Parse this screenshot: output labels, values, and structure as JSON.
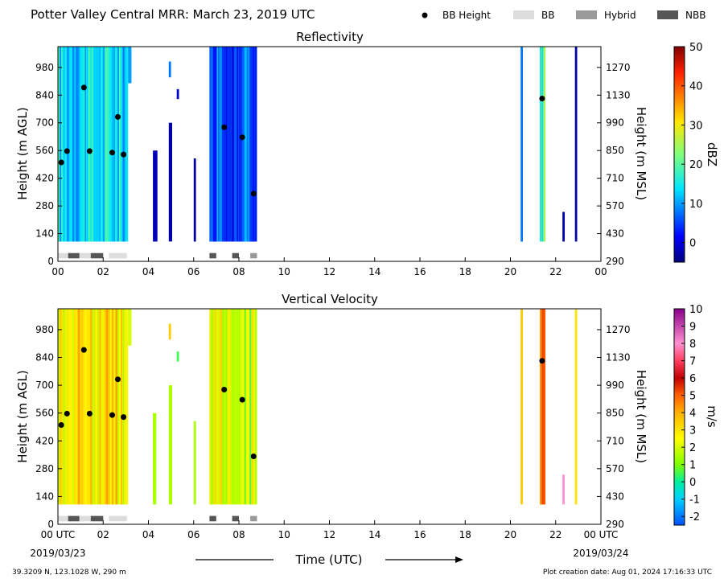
{
  "title": "Potter Valley Central MRR:  March 23, 2019 UTC",
  "legend": [
    {
      "label": "BB Height",
      "kind": "dot",
      "color": "#000000"
    },
    {
      "label": "BB",
      "kind": "box",
      "color": "#dddddd"
    },
    {
      "label": "Hybrid",
      "kind": "box",
      "color": "#999999"
    },
    {
      "label": "NBB",
      "kind": "box",
      "color": "#555555"
    }
  ],
  "footer": {
    "location": "39.3209 N, 123.1028 W, 290 m",
    "created": "Plot creation date: Aug 01, 2024 17:16:33 UTC",
    "xlabel": "Time (UTC)",
    "start_time_label": "00 UTC",
    "end_time_label": "00 UTC",
    "start_date": "2019/03/23",
    "end_date": "2019/03/24"
  },
  "chart_data": [
    {
      "type": "heatmap",
      "title": "Reflectivity",
      "xlabel": "Time (UTC)",
      "ylabel": "Height (m AGL)",
      "y2label": "Height (m MSL)",
      "xlim": [
        0,
        24
      ],
      "ylim": [
        0,
        1085
      ],
      "xticks": [
        "00",
        "02",
        "04",
        "06",
        "08",
        "10",
        "12",
        "14",
        "16",
        "18",
        "20",
        "22",
        "00"
      ],
      "yticks": [
        0,
        140,
        280,
        420,
        560,
        700,
        840,
        980
      ],
      "y2ticks": [
        290,
        430,
        570,
        710,
        850,
        990,
        1130,
        1270
      ],
      "colorbar": {
        "label": "dBZ",
        "min": -5,
        "max": 50,
        "ticks": [
          0,
          10,
          20,
          30,
          40,
          50
        ],
        "colormap": "jet"
      },
      "bb_height_points": [
        {
          "x": 0.15,
          "y": 500
        },
        {
          "x": 0.4,
          "y": 557
        },
        {
          "x": 1.15,
          "y": 878
        },
        {
          "x": 1.4,
          "y": 557
        },
        {
          "x": 2.4,
          "y": 550
        },
        {
          "x": 2.65,
          "y": 730
        },
        {
          "x": 2.9,
          "y": 540
        },
        {
          "x": 7.35,
          "y": 678
        },
        {
          "x": 8.15,
          "y": 627
        },
        {
          "x": 8.65,
          "y": 342
        },
        {
          "x": 21.4,
          "y": 823
        }
      ],
      "bb_type_blocks": [
        {
          "start": 0.0,
          "end": 0.45,
          "type": "BB"
        },
        {
          "start": 0.45,
          "end": 0.95,
          "type": "NBB"
        },
        {
          "start": 0.95,
          "end": 1.45,
          "type": "BB"
        },
        {
          "start": 1.45,
          "end": 2.0,
          "type": "NBB"
        },
        {
          "start": 2.25,
          "end": 3.05,
          "type": "BB"
        },
        {
          "start": 6.7,
          "end": 7.0,
          "type": "NBB"
        },
        {
          "start": 7.7,
          "end": 8.0,
          "type": "NBB"
        },
        {
          "start": 8.5,
          "end": 8.8,
          "type": "Hybrid"
        }
      ],
      "data_spans": [
        {
          "start": 0.0,
          "end": 3.1,
          "from": 100,
          "to": 1085,
          "level": 14
        },
        {
          "start": 3.1,
          "end": 3.25,
          "from": 900,
          "to": 1085,
          "level": 10
        },
        {
          "start": 4.2,
          "end": 4.4,
          "from": 100,
          "to": 560,
          "level": -2
        },
        {
          "start": 4.9,
          "end": 5.05,
          "from": 100,
          "to": 700,
          "level": -3
        },
        {
          "start": 4.9,
          "end": 5.0,
          "from": 930,
          "to": 1010,
          "level": 8
        },
        {
          "start": 5.25,
          "end": 5.35,
          "from": 820,
          "to": 870,
          "level": -1
        },
        {
          "start": 6.0,
          "end": 6.1,
          "from": 100,
          "to": 520,
          "level": -3
        },
        {
          "start": 6.7,
          "end": 8.8,
          "from": 100,
          "to": 1085,
          "level": 6
        },
        {
          "start": 20.45,
          "end": 20.55,
          "from": 100,
          "to": 1085,
          "level": 8
        },
        {
          "start": 21.3,
          "end": 21.55,
          "from": 100,
          "to": 1085,
          "level": 20
        },
        {
          "start": 22.3,
          "end": 22.4,
          "from": 100,
          "to": 250,
          "level": -3
        },
        {
          "start": 22.85,
          "end": 22.95,
          "from": 100,
          "to": 1085,
          "level": -3
        }
      ]
    },
    {
      "type": "heatmap",
      "title": "Vertical Velocity",
      "xlabel": "Time (UTC)",
      "ylabel": "Height (m AGL)",
      "y2label": "Height (m MSL)",
      "xlim": [
        0,
        24
      ],
      "ylim": [
        0,
        1085
      ],
      "xticks": [
        "00 UTC",
        "02",
        "04",
        "06",
        "08",
        "10",
        "12",
        "14",
        "16",
        "18",
        "20",
        "22",
        "00 UTC"
      ],
      "yticks": [
        0,
        140,
        280,
        420,
        560,
        700,
        840,
        980
      ],
      "y2ticks": [
        290,
        430,
        570,
        710,
        850,
        990,
        1130,
        1270
      ],
      "colorbar": {
        "label": "m/s",
        "min": -2.5,
        "max": 10,
        "ticks": [
          -2,
          -1,
          0,
          1,
          2,
          3,
          4,
          5,
          6,
          7,
          8,
          9,
          10
        ],
        "colormap": "velocity"
      },
      "bb_height_points": [
        {
          "x": 0.15,
          "y": 500
        },
        {
          "x": 0.4,
          "y": 557
        },
        {
          "x": 1.15,
          "y": 878
        },
        {
          "x": 1.4,
          "y": 557
        },
        {
          "x": 2.4,
          "y": 550
        },
        {
          "x": 2.65,
          "y": 730
        },
        {
          "x": 2.9,
          "y": 540
        },
        {
          "x": 7.35,
          "y": 678
        },
        {
          "x": 8.15,
          "y": 627
        },
        {
          "x": 8.65,
          "y": 342
        },
        {
          "x": 21.4,
          "y": 823
        }
      ],
      "bb_type_blocks": [
        {
          "start": 0.0,
          "end": 0.45,
          "type": "BB"
        },
        {
          "start": 0.45,
          "end": 0.95,
          "type": "NBB"
        },
        {
          "start": 0.95,
          "end": 1.45,
          "type": "BB"
        },
        {
          "start": 1.45,
          "end": 2.0,
          "type": "NBB"
        },
        {
          "start": 2.25,
          "end": 3.05,
          "type": "BB"
        },
        {
          "start": 6.7,
          "end": 7.0,
          "type": "NBB"
        },
        {
          "start": 7.7,
          "end": 8.0,
          "type": "NBB"
        },
        {
          "start": 8.5,
          "end": 8.8,
          "type": "Hybrid"
        }
      ],
      "data_spans": [
        {
          "start": 0.0,
          "end": 3.1,
          "from": 100,
          "to": 1085,
          "level": 3
        },
        {
          "start": 3.1,
          "end": 3.25,
          "from": 900,
          "to": 1085,
          "level": 2
        },
        {
          "start": 4.2,
          "end": 4.35,
          "from": 100,
          "to": 560,
          "level": 1.5
        },
        {
          "start": 4.9,
          "end": 5.05,
          "from": 100,
          "to": 700,
          "level": 1.5
        },
        {
          "start": 4.9,
          "end": 5.0,
          "from": 930,
          "to": 1010,
          "level": 3.5
        },
        {
          "start": 5.25,
          "end": 5.35,
          "from": 820,
          "to": 870,
          "level": 0.5
        },
        {
          "start": 6.0,
          "end": 6.1,
          "from": 100,
          "to": 520,
          "level": 1.5
        },
        {
          "start": 6.7,
          "end": 8.8,
          "from": 100,
          "to": 1085,
          "level": 2
        },
        {
          "start": 20.45,
          "end": 20.55,
          "from": 100,
          "to": 1085,
          "level": 3.5
        },
        {
          "start": 21.3,
          "end": 21.55,
          "from": 100,
          "to": 1085,
          "level": 5
        },
        {
          "start": 22.3,
          "end": 22.4,
          "from": 100,
          "to": 250,
          "level": 8
        },
        {
          "start": 22.85,
          "end": 22.95,
          "from": 100,
          "to": 1085,
          "level": 3
        }
      ]
    }
  ]
}
